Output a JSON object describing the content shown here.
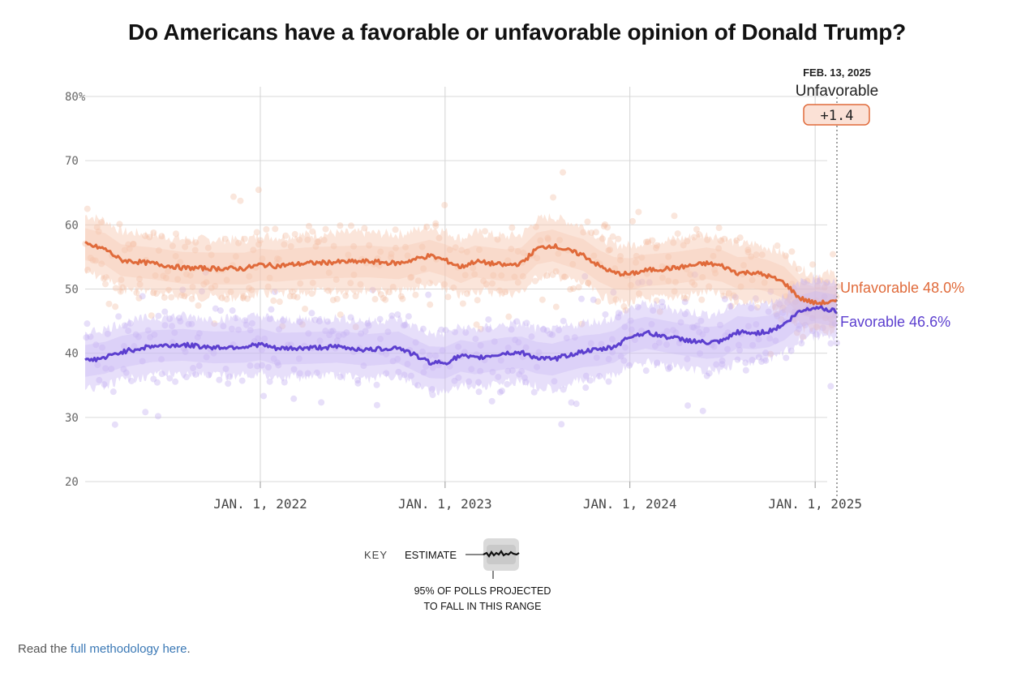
{
  "title": "Do Americans have a favorable or unfavorable opinion of Donald Trump?",
  "chart_data": {
    "type": "line",
    "ylim": [
      20,
      80
    ],
    "y_ticks": [
      "80%",
      "70",
      "60",
      "50",
      "40",
      "30",
      "20"
    ],
    "x_ticks": [
      {
        "label": "JAN. 1, 2022",
        "date": "2022-01-01"
      },
      {
        "label": "JAN. 1, 2023",
        "date": "2023-01-01"
      },
      {
        "label": "JAN. 1, 2024",
        "date": "2024-01-01"
      },
      {
        "label": "JAN. 1, 2025",
        "date": "2025-01-01"
      }
    ],
    "xlim": [
      "2021-01-20",
      "2025-02-13"
    ],
    "grid": true,
    "series": [
      {
        "name": "Unfavorable",
        "color": "#e06a3a",
        "end_label": "Unfavorable 48.0%",
        "points": [
          [
            "2021-01-20",
            57.0
          ],
          [
            "2021-03-01",
            56.2
          ],
          [
            "2021-04-01",
            54.5
          ],
          [
            "2021-06-01",
            54.0
          ],
          [
            "2021-08-01",
            53.3
          ],
          [
            "2021-10-01",
            53.2
          ],
          [
            "2021-12-01",
            53.2
          ],
          [
            "2022-01-01",
            53.8
          ],
          [
            "2022-02-01",
            53.6
          ],
          [
            "2022-04-01",
            54.0
          ],
          [
            "2022-06-01",
            54.2
          ],
          [
            "2022-08-01",
            54.3
          ],
          [
            "2022-10-01",
            54.0
          ],
          [
            "2022-12-01",
            55.2
          ],
          [
            "2023-01-01",
            54.5
          ],
          [
            "2023-02-01",
            53.4
          ],
          [
            "2023-03-01",
            54.3
          ],
          [
            "2023-05-01",
            53.7
          ],
          [
            "2023-06-01",
            54.0
          ],
          [
            "2023-07-01",
            56.3
          ],
          [
            "2023-08-01",
            56.8
          ],
          [
            "2023-09-01",
            56.0
          ],
          [
            "2023-10-01",
            55.3
          ],
          [
            "2023-11-01",
            53.6
          ],
          [
            "2023-12-01",
            52.5
          ],
          [
            "2024-01-01",
            52.3
          ],
          [
            "2024-02-01",
            52.9
          ],
          [
            "2024-04-01",
            53.3
          ],
          [
            "2024-06-01",
            54.0
          ],
          [
            "2024-07-01",
            53.6
          ],
          [
            "2024-08-01",
            52.5
          ],
          [
            "2024-09-01",
            52.6
          ],
          [
            "2024-10-01",
            52.0
          ],
          [
            "2024-11-01",
            51.0
          ],
          [
            "2024-12-01",
            48.6
          ],
          [
            "2025-01-01",
            47.8
          ],
          [
            "2025-02-13",
            48.0
          ]
        ]
      },
      {
        "name": "Favorable",
        "color": "#5c3fcf",
        "end_label": "Favorable 46.6%",
        "points": [
          [
            "2021-01-20",
            38.8
          ],
          [
            "2021-03-01",
            39.3
          ],
          [
            "2021-04-01",
            40.2
          ],
          [
            "2021-06-01",
            41.1
          ],
          [
            "2021-08-01",
            41.3
          ],
          [
            "2021-10-01",
            40.9
          ],
          [
            "2021-12-01",
            41.0
          ],
          [
            "2022-01-01",
            41.4
          ],
          [
            "2022-02-01",
            40.7
          ],
          [
            "2022-04-01",
            40.8
          ],
          [
            "2022-06-01",
            41.0
          ],
          [
            "2022-08-01",
            40.5
          ],
          [
            "2022-10-01",
            40.9
          ],
          [
            "2022-12-01",
            38.6
          ],
          [
            "2023-01-01",
            38.5
          ],
          [
            "2023-02-01",
            39.6
          ],
          [
            "2023-03-01",
            39.2
          ],
          [
            "2023-05-01",
            40.0
          ],
          [
            "2023-06-01",
            40.1
          ],
          [
            "2023-07-01",
            39.3
          ],
          [
            "2023-08-01",
            39.0
          ],
          [
            "2023-09-01",
            39.7
          ],
          [
            "2023-10-01",
            40.3
          ],
          [
            "2023-11-01",
            40.5
          ],
          [
            "2023-12-01",
            41.0
          ],
          [
            "2024-01-01",
            42.6
          ],
          [
            "2024-02-01",
            43.2
          ],
          [
            "2024-04-01",
            42.3
          ],
          [
            "2024-06-01",
            41.6
          ],
          [
            "2024-07-01",
            41.8
          ],
          [
            "2024-08-01",
            43.3
          ],
          [
            "2024-09-01",
            43.1
          ],
          [
            "2024-10-01",
            43.4
          ],
          [
            "2024-11-01",
            44.5
          ],
          [
            "2024-12-01",
            46.5
          ],
          [
            "2025-01-01",
            47.2
          ],
          [
            "2025-02-13",
            46.6
          ]
        ]
      }
    ],
    "band_half_width": 4.5,
    "tooltip": {
      "date": "FEB. 13, 2025",
      "leader": "Unfavorable",
      "margin": "+1.4"
    }
  },
  "key": {
    "label": "KEY",
    "estimate_label": "ESTIMATE",
    "range_label_line1": "95% OF POLLS PROJECTED",
    "range_label_line2": "TO FALL IN THIS RANGE"
  },
  "footer": {
    "prefix": "Read the ",
    "link_text": "full methodology here",
    "suffix": "."
  }
}
